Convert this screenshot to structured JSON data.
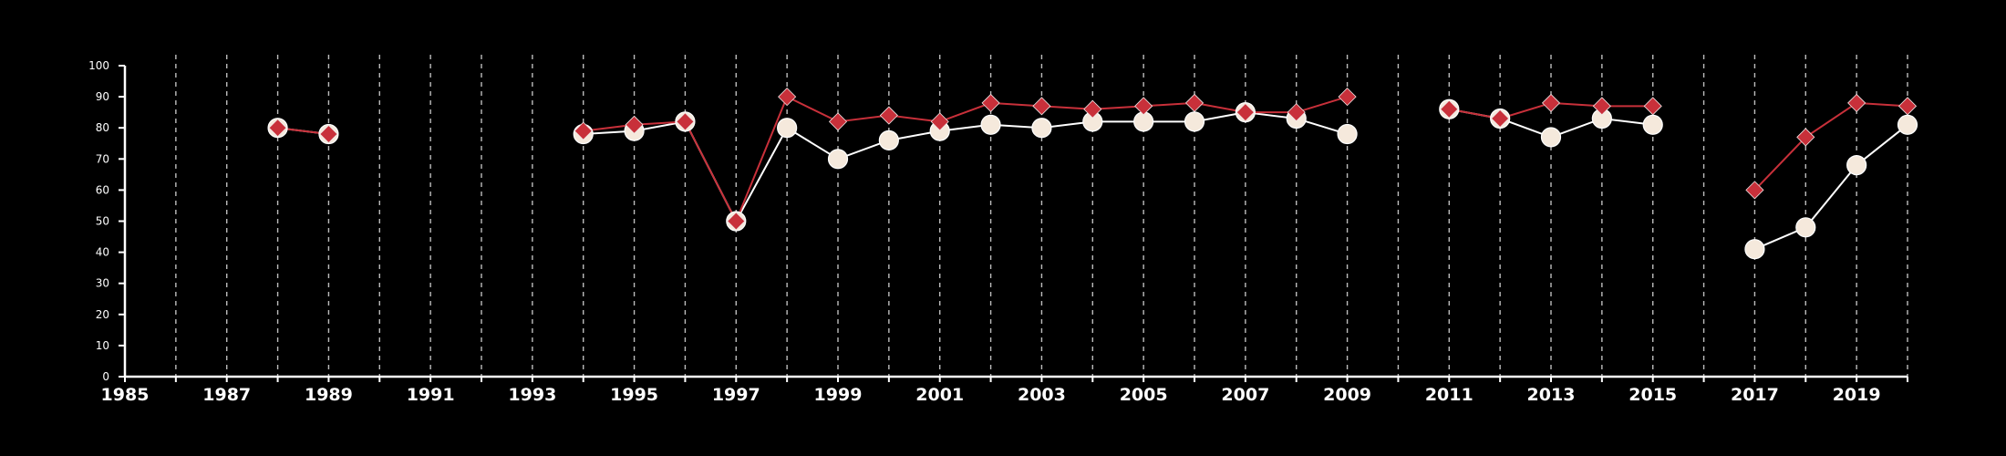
{
  "chart_data": {
    "type": "line",
    "title": "",
    "xlabel": "",
    "ylabel": "",
    "xlim": [
      1985,
      2020
    ],
    "ylim": [
      0,
      100
    ],
    "x_ticks": [
      1985,
      1986,
      1987,
      1988,
      1989,
      1990,
      1991,
      1992,
      1993,
      1994,
      1995,
      1996,
      1997,
      1998,
      1999,
      2000,
      2001,
      2002,
      2003,
      2004,
      2005,
      2006,
      2007,
      2008,
      2009,
      2010,
      2011,
      2012,
      2013,
      2014,
      2015,
      2016,
      2017,
      2018,
      2019,
      2020
    ],
    "x_tick_labels": [
      "1985",
      "1987",
      "1989",
      "1991",
      "1993",
      "1995",
      "1997",
      "1999",
      "2001",
      "2003",
      "2005",
      "2007",
      "2009",
      "2011",
      "2013",
      "2015",
      "2017",
      "2019"
    ],
    "y_ticks": [
      0,
      10,
      20,
      30,
      40,
      50,
      60,
      70,
      80,
      90,
      100
    ],
    "y_tick_labels": [
      "0",
      "10",
      "20",
      "30",
      "40",
      "50",
      "60",
      "70",
      "80",
      "90",
      "100"
    ],
    "grid": "vertical dashed",
    "legend": "none",
    "series": [
      {
        "marker": "diamond",
        "color": "#c8303a",
        "points": [
          [
            1988,
            80
          ],
          [
            1989,
            78
          ],
          [
            1990,
            null
          ],
          [
            1993,
            null
          ],
          [
            1994,
            79
          ],
          [
            1995,
            81
          ],
          [
            1996,
            82
          ],
          [
            1997,
            50
          ],
          [
            1998,
            90
          ],
          [
            1999,
            82
          ],
          [
            2000,
            84
          ],
          [
            2001,
            82
          ],
          [
            2002,
            88
          ],
          [
            2003,
            87
          ],
          [
            2004,
            86
          ],
          [
            2005,
            87
          ],
          [
            2006,
            88
          ],
          [
            2007,
            85
          ],
          [
            2008,
            85
          ],
          [
            2009,
            90
          ],
          [
            2010,
            null
          ],
          [
            2011,
            86
          ],
          [
            2012,
            83
          ],
          [
            2013,
            88
          ],
          [
            2014,
            87
          ],
          [
            2015,
            87
          ],
          [
            2016,
            null
          ],
          [
            2017,
            60
          ],
          [
            2018,
            77
          ],
          [
            2019,
            88
          ],
          [
            2020,
            87
          ]
        ]
      },
      {
        "marker": "circle",
        "color": "#f5e9dc",
        "line_color": "#ffffff",
        "points": [
          [
            1988,
            80
          ],
          [
            1989,
            78
          ],
          [
            1990,
            null
          ],
          [
            1993,
            null
          ],
          [
            1994,
            78
          ],
          [
            1995,
            79
          ],
          [
            1996,
            82
          ],
          [
            1997,
            50
          ],
          [
            1998,
            80
          ],
          [
            1999,
            70
          ],
          [
            2000,
            76
          ],
          [
            2001,
            79
          ],
          [
            2002,
            81
          ],
          [
            2003,
            80
          ],
          [
            2004,
            82
          ],
          [
            2005,
            82
          ],
          [
            2006,
            82
          ],
          [
            2007,
            85
          ],
          [
            2008,
            83
          ],
          [
            2009,
            78
          ],
          [
            2010,
            null
          ],
          [
            2011,
            86
          ],
          [
            2012,
            83
          ],
          [
            2013,
            77
          ],
          [
            2014,
            83
          ],
          [
            2015,
            81
          ],
          [
            2016,
            null
          ],
          [
            2017,
            41
          ],
          [
            2018,
            48
          ],
          [
            2019,
            68
          ],
          [
            2020,
            81
          ]
        ]
      }
    ]
  }
}
